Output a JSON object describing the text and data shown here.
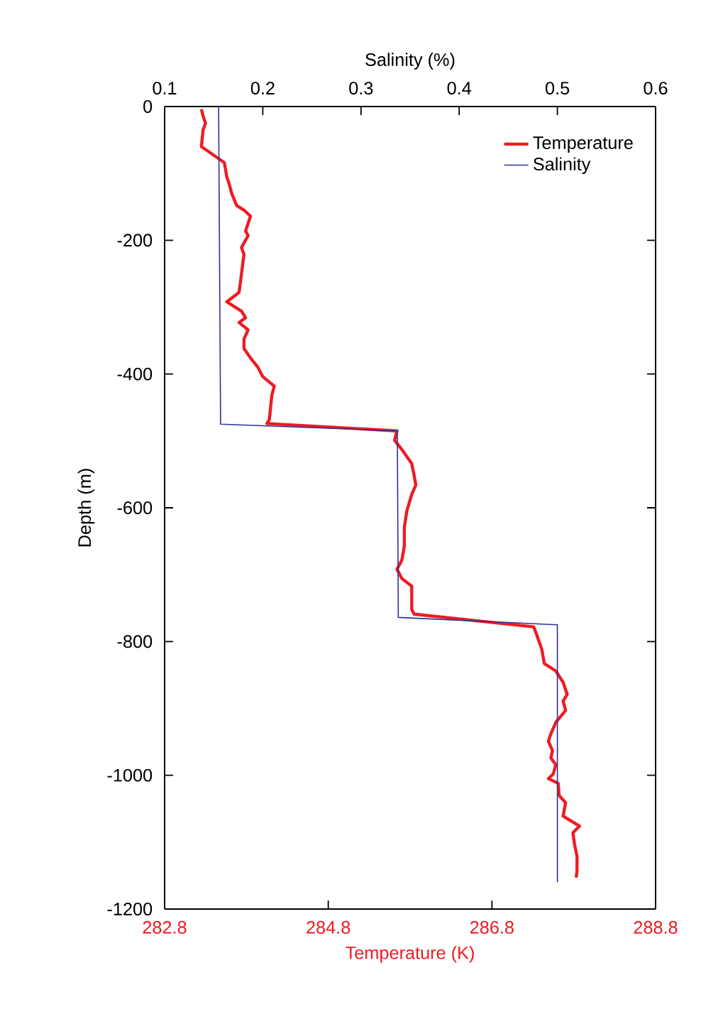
{
  "chart_data": {
    "type": "line",
    "xlabel": "Temperature (K)",
    "x2label": "Salinity (%)",
    "ylabel": "Depth (m)",
    "xlim": [
      282.8,
      288.8
    ],
    "xticks": [
      282.8,
      284.8,
      286.8,
      288.8
    ],
    "x2lim": [
      0.1,
      0.6
    ],
    "x2ticks": [
      0.1,
      0.2,
      0.3,
      0.4,
      0.5,
      0.6
    ],
    "ylim": [
      -1200,
      0
    ],
    "yticks": [
      -1200,
      -1000,
      -800,
      -600,
      -400,
      -200,
      0
    ],
    "legend": "top right",
    "grid": false,
    "series": [
      {
        "name": "Temperature",
        "color": "#ed1c24",
        "x": [
          283.25,
          283.27,
          283.3,
          283.27,
          283.25,
          283.45,
          283.53,
          283.56,
          283.59,
          283.62,
          283.68,
          283.77,
          283.85,
          283.79,
          283.82,
          283.74,
          283.77,
          283.74,
          283.71,
          283.56,
          283.65,
          283.74,
          283.79,
          283.71,
          283.82,
          283.77,
          283.77,
          283.85,
          283.94,
          284.0,
          284.14,
          284.11,
          284.08,
          284.05,
          285.64,
          285.61,
          285.7,
          285.82,
          285.85,
          285.87,
          285.82,
          285.76,
          285.73,
          285.73,
          285.7,
          285.64,
          285.7,
          285.82,
          285.82,
          285.85,
          287.31,
          287.35,
          287.41,
          287.44,
          287.58,
          287.67,
          287.72,
          287.67,
          287.7,
          287.58,
          287.52,
          287.49,
          287.54,
          287.52,
          287.58,
          287.55,
          287.49,
          287.61,
          287.62,
          287.7,
          287.67,
          287.87,
          287.79,
          287.81,
          287.84,
          287.84,
          287.83
        ],
        "values": [
          -4,
          -14,
          -25,
          -35,
          -60,
          -77,
          -84,
          -105,
          -116,
          -130,
          -148,
          -155,
          -164,
          -186,
          -193,
          -211,
          -221,
          -250,
          -278,
          -292,
          -299,
          -306,
          -316,
          -323,
          -334,
          -348,
          -362,
          -376,
          -390,
          -404,
          -418,
          -432,
          -468,
          -474,
          -485,
          -499,
          -513,
          -534,
          -552,
          -566,
          -580,
          -605,
          -629,
          -657,
          -678,
          -692,
          -706,
          -717,
          -752,
          -759,
          -778,
          -791,
          -812,
          -833,
          -844,
          -861,
          -879,
          -889,
          -903,
          -921,
          -938,
          -949,
          -963,
          -974,
          -984,
          -998,
          -1005,
          -1012,
          -1030,
          -1041,
          -1061,
          -1076,
          -1086,
          -1104,
          -1121,
          -1142,
          -1153
        ]
      },
      {
        "name": "Salinity",
        "color": "#2e3192",
        "axis": "x2",
        "x": [
          0.155,
          0.157,
          0.337,
          0.338,
          0.5,
          0.5
        ],
        "values": [
          0,
          -475,
          -485,
          -764,
          -775,
          -1160
        ]
      }
    ]
  }
}
